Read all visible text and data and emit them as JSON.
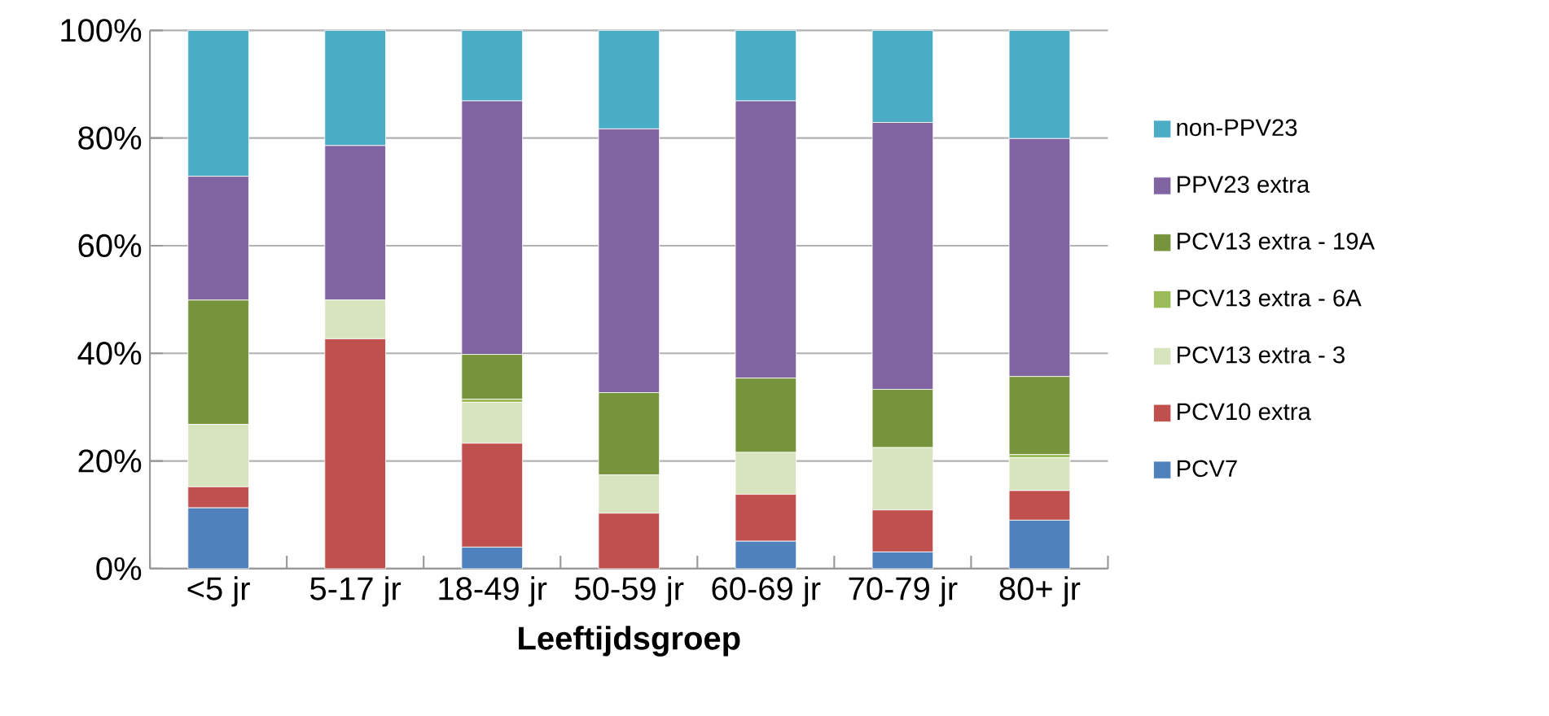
{
  "chart_data": {
    "type": "bar",
    "stacked": true,
    "xlabel": "Leeftijdsgroep",
    "categories": [
      "<5 jr",
      "5-17 jr",
      "18-49 jr",
      "50-59 jr",
      "60-69 jr",
      "70-79 jr",
      "80+ jr"
    ],
    "series": [
      {
        "name": "PCV7",
        "color": "#4f81bd",
        "values": [
          11.3,
          0,
          4.0,
          0,
          5.1,
          3.1,
          9.0
        ]
      },
      {
        "name": "PCV10 extra",
        "color": "#c0504d",
        "values": [
          3.9,
          42.7,
          19.3,
          10.3,
          8.7,
          7.8,
          5.5
        ]
      },
      {
        "name": "PCV13 extra - 3",
        "color": "#d7e4bd",
        "values": [
          11.6,
          7.2,
          7.6,
          7.1,
          7.8,
          11.6,
          6.1
        ]
      },
      {
        "name": "PCV13 extra - 6A",
        "color": "#9bbb59",
        "values": [
          0,
          0,
          0.6,
          0,
          0,
          0,
          0.6
        ]
      },
      {
        "name": "PCV13 extra - 19A",
        "color": "#77933c",
        "values": [
          23.1,
          0,
          8.3,
          15.3,
          13.8,
          10.8,
          14.5
        ]
      },
      {
        "name": "PPV23 extra",
        "color": "#8064a2",
        "values": [
          23.0,
          28.7,
          47.1,
          49.0,
          51.5,
          49.6,
          44.2
        ]
      },
      {
        "name": "non-PPV23",
        "color": "#4bacc6",
        "values": [
          27.1,
          21.4,
          13.1,
          18.3,
          13.1,
          17.1,
          20.1
        ]
      }
    ],
    "ylim": [
      0,
      100
    ],
    "yticks": [
      {
        "value": 0,
        "label": "0%"
      },
      {
        "value": 20,
        "label": "20%"
      },
      {
        "value": 40,
        "label": "40%"
      },
      {
        "value": 60,
        "label": "60%"
      },
      {
        "value": 80,
        "label": "80%"
      },
      {
        "value": 100,
        "label": "100%"
      }
    ],
    "grid": "y",
    "legend": "right"
  }
}
